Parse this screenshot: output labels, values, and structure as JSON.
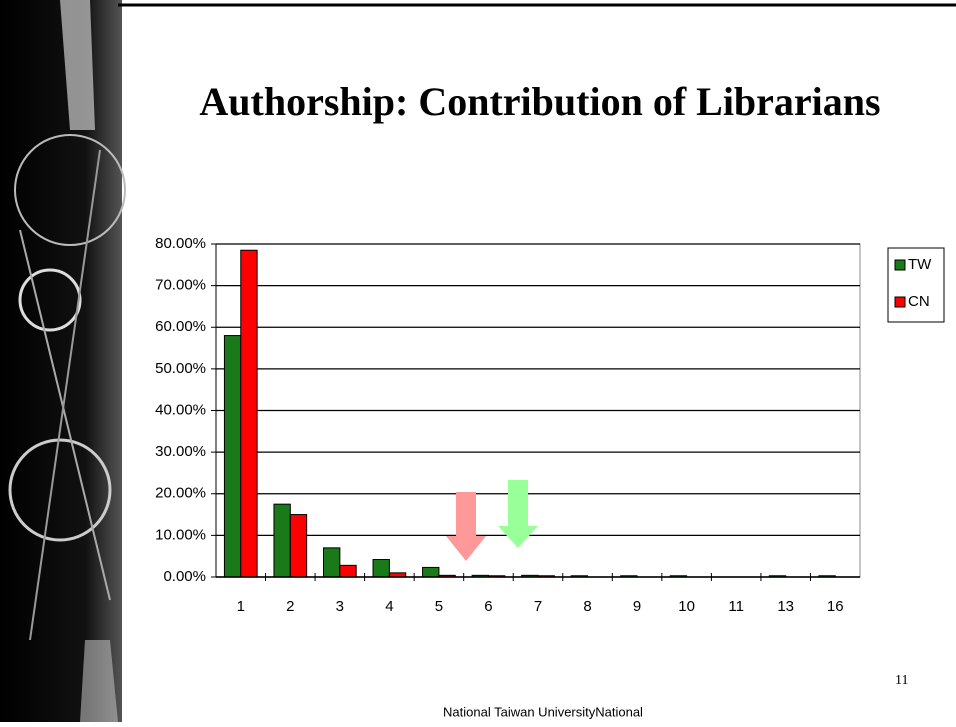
{
  "chart_data": {
    "type": "bar",
    "title": "Authorship: Contribution of Librarians",
    "categories": [
      "1",
      "2",
      "3",
      "4",
      "5",
      "6",
      "7",
      "8",
      "9",
      "10",
      "11",
      "13",
      "16"
    ],
    "series": [
      {
        "name": "TW",
        "color": "#1a7a1a",
        "values": [
          58,
          17.5,
          7,
          4.2,
          2.3,
          0.4,
          0.4,
          0.3,
          0.3,
          0.3,
          0,
          0.3,
          0.3
        ]
      },
      {
        "name": "CN",
        "color": "#ff0000",
        "values": [
          78.5,
          15,
          2.8,
          1,
          0.4,
          0.3,
          0.3,
          0,
          0,
          0,
          0,
          0,
          0
        ]
      }
    ],
    "ylim": [
      0,
      80
    ],
    "yticks": [
      {
        "value": 0,
        "label": "0.00%"
      },
      {
        "value": 10,
        "label": "10.00%"
      },
      {
        "value": 20,
        "label": "20.00%"
      },
      {
        "value": 30,
        "label": "30.00%"
      },
      {
        "value": 40,
        "label": "40.00%"
      },
      {
        "value": 50,
        "label": "50.00%"
      },
      {
        "value": 60,
        "label": "60.00%"
      },
      {
        "value": 70,
        "label": "70.00%"
      },
      {
        "value": 80,
        "label": "80.00%"
      }
    ],
    "grid": true,
    "legend": "right"
  },
  "page_number": "11",
  "footer": "National Taiwan UniversityNational"
}
